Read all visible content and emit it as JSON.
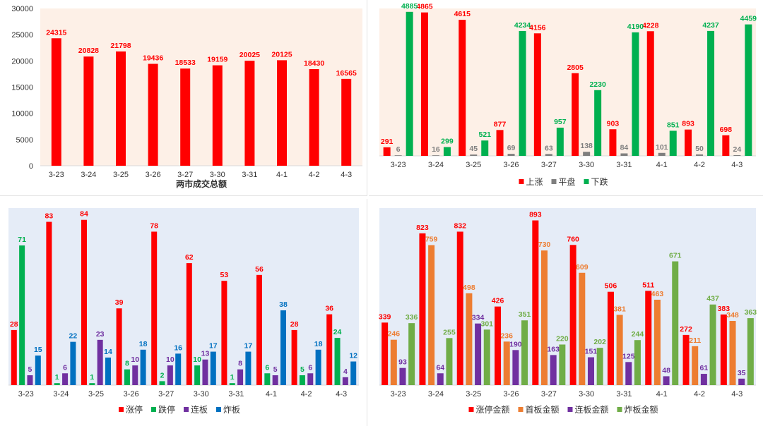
{
  "chart_data": [
    {
      "id": "turnover",
      "type": "bar",
      "title": "",
      "xlabel": "两市成交总额",
      "ylabel": "",
      "ylim": [
        0,
        30000
      ],
      "yticks": [
        0,
        5000,
        10000,
        15000,
        20000,
        25000,
        30000
      ],
      "grid": false,
      "legend": "none",
      "categories": [
        "3-23",
        "3-24",
        "3-25",
        "3-26",
        "3-27",
        "3-30",
        "3-31",
        "4-1",
        "4-2",
        "4-3"
      ],
      "series": [
        {
          "name": "",
          "color": "#ff0000",
          "values": [
            24315,
            20828,
            21798,
            19436,
            18533,
            19159,
            20025,
            20125,
            18430,
            16565
          ]
        }
      ]
    },
    {
      "id": "breadth",
      "type": "bar",
      "title": "",
      "ylim": [
        0,
        5000
      ],
      "grid": false,
      "legend": "bottom",
      "categories": [
        "3-23",
        "3-24",
        "3-25",
        "3-26",
        "3-27",
        "3-30",
        "3-31",
        "4-1",
        "4-2",
        "4-3"
      ],
      "series": [
        {
          "name": "上涨",
          "color": "#ff0000",
          "values": [
            291,
            4865,
            4615,
            877,
            4156,
            2805,
            903,
            4228,
            893,
            698
          ]
        },
        {
          "name": "平盘",
          "color": "#7f7f7f",
          "values": [
            6,
            16,
            45,
            69,
            63,
            138,
            84,
            101,
            50,
            24
          ]
        },
        {
          "name": "下跌",
          "color": "#00b050",
          "values": [
            4885,
            299,
            521,
            4234,
            957,
            2230,
            4190,
            851,
            4237,
            4459
          ]
        }
      ]
    },
    {
      "id": "limit-counts",
      "type": "bar",
      "title": "",
      "ylim": [
        0,
        90
      ],
      "grid": false,
      "legend": "bottom",
      "categories": [
        "3-23",
        "3-24",
        "3-25",
        "3-26",
        "3-27",
        "3-30",
        "3-31",
        "4-1",
        "4-2",
        "4-3"
      ],
      "series": [
        {
          "name": "涨停",
          "color": "#ff0000",
          "values": [
            28,
            83,
            84,
            39,
            78,
            62,
            53,
            56,
            28,
            36
          ]
        },
        {
          "name": "跌停",
          "color": "#00b050",
          "values": [
            71,
            1,
            1,
            8,
            2,
            10,
            1,
            6,
            5,
            24
          ]
        },
        {
          "name": "连板",
          "color": "#7030a0",
          "values": [
            5,
            6,
            23,
            10,
            10,
            13,
            8,
            5,
            6,
            4
          ]
        },
        {
          "name": "炸板",
          "color": "#0070c0",
          "values": [
            15,
            22,
            14,
            18,
            16,
            17,
            17,
            38,
            18,
            12
          ]
        }
      ]
    },
    {
      "id": "limit-amounts",
      "type": "bar",
      "title": "",
      "ylim": [
        0,
        960
      ],
      "grid": false,
      "legend": "bottom",
      "categories": [
        "3-23",
        "3-24",
        "3-25",
        "3-26",
        "3-27",
        "3-30",
        "3-31",
        "4-1",
        "4-2",
        "4-3"
      ],
      "series": [
        {
          "name": "涨停金额",
          "color": "#ff0000",
          "values": [
            339,
            823,
            832,
            426,
            893,
            760,
            506,
            511,
            272,
            383
          ]
        },
        {
          "name": "首板金额",
          "color": "#ed7d31",
          "values": [
            246,
            759,
            498,
            236,
            730,
            609,
            381,
            463,
            211,
            348
          ]
        },
        {
          "name": "连板金额",
          "color": "#7030a0",
          "values": [
            93,
            64,
            334,
            190,
            163,
            151,
            125,
            48,
            61,
            35
          ]
        },
        {
          "name": "炸板金额",
          "color": "#70ad47",
          "values": [
            336,
            255,
            301,
            351,
            220,
            202,
            244,
            671,
            437,
            363
          ]
        }
      ]
    }
  ]
}
